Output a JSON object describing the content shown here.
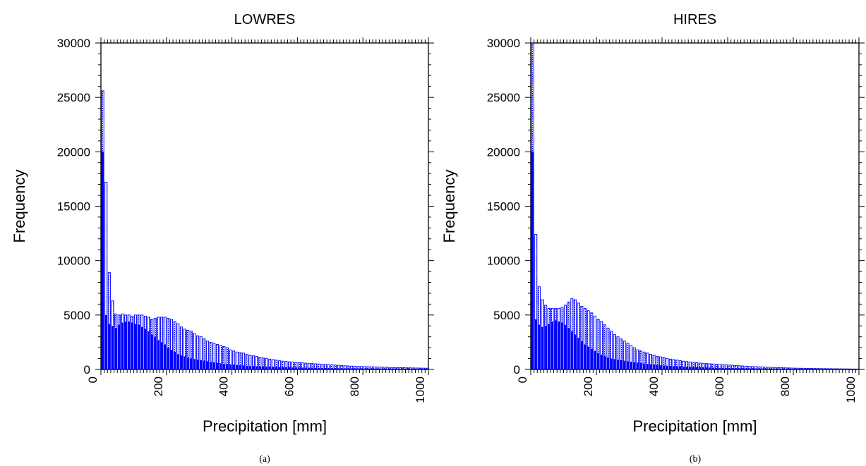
{
  "chart_data": [
    {
      "type": "bar",
      "title": "LOWRES",
      "xlabel": "Precipitation [mm]",
      "ylabel": "Frequency",
      "caption": "(a)",
      "xlim": [
        0,
        1000
      ],
      "ylim": [
        0,
        30000
      ],
      "xticks": [
        0,
        200,
        400,
        600,
        800,
        1000
      ],
      "yticks": [
        0,
        5000,
        10000,
        15000,
        20000,
        25000,
        30000
      ],
      "bin_width": 10,
      "bar_color": "#0000ff",
      "bar_style": "overlaid filled + hatched outline bars",
      "grid": false,
      "series": [
        {
          "style": "outline",
          "values": [
            25600,
            17200,
            8900,
            6300,
            5100,
            5000,
            5100,
            5000,
            5000,
            4900,
            5000,
            5000,
            5000,
            4900,
            4800,
            4600,
            4700,
            4800,
            4800,
            4800,
            4700,
            4600,
            4400,
            4200,
            3900,
            3700,
            3600,
            3500,
            3300,
            3100,
            3000,
            2800,
            2600,
            2500,
            2400,
            2300,
            2200,
            2100,
            2000,
            1800,
            1700,
            1600,
            1550,
            1500,
            1400,
            1300,
            1250,
            1200,
            1100,
            1050,
            1000,
            950,
            900,
            850,
            800,
            760,
            730,
            700,
            680,
            650,
            620,
            600,
            580,
            560,
            540,
            520,
            500,
            480,
            460,
            440,
            420,
            400,
            380,
            360,
            340,
            320,
            305,
            290,
            280,
            270,
            260,
            250,
            240,
            230,
            220,
            210,
            200,
            190,
            180,
            175,
            170,
            165,
            160,
            150,
            145,
            140,
            130,
            125,
            120,
            115
          ]
        },
        {
          "style": "filled",
          "values": [
            20000,
            5000,
            4200,
            4000,
            3800,
            4100,
            4300,
            4400,
            4400,
            4300,
            4200,
            4100,
            3900,
            3700,
            3500,
            3200,
            3000,
            2700,
            2500,
            2300,
            2000,
            1800,
            1600,
            1400,
            1300,
            1200,
            1100,
            1000,
            950,
            900,
            850,
            800,
            750,
            700,
            650,
            600,
            560,
            520,
            480,
            450,
            420,
            400,
            380,
            360,
            340,
            320,
            300,
            290,
            280,
            270,
            260,
            250,
            240,
            230,
            220,
            210,
            200,
            190,
            180,
            175,
            170,
            165,
            160,
            155,
            150,
            145,
            140,
            135,
            130,
            125,
            120,
            115,
            110,
            105,
            100,
            98,
            95,
            92,
            90,
            88,
            85,
            82,
            80,
            78,
            76,
            74,
            72,
            70,
            68,
            66,
            64,
            62,
            60,
            58,
            56,
            54,
            52,
            50,
            48,
            46
          ]
        }
      ]
    },
    {
      "type": "bar",
      "title": "HIRES",
      "xlabel": "Precipitation [mm]",
      "ylabel": "Frequency",
      "caption": "(b)",
      "xlim": [
        0,
        1000
      ],
      "ylim": [
        0,
        30000
      ],
      "xticks": [
        0,
        200,
        400,
        600,
        800,
        1000
      ],
      "yticks": [
        0,
        5000,
        10000,
        15000,
        20000,
        25000,
        30000
      ],
      "bin_width": 10,
      "bar_color": "#0000ff",
      "bar_style": "overlaid filled + hatched outline bars",
      "grid": false,
      "series": [
        {
          "style": "outline",
          "values": [
            30000,
            12400,
            7600,
            6400,
            5900,
            5600,
            5600,
            5600,
            5600,
            5700,
            5900,
            6200,
            6500,
            6400,
            6100,
            5800,
            5600,
            5400,
            5200,
            4900,
            4600,
            4400,
            4100,
            3800,
            3500,
            3200,
            3000,
            2800,
            2600,
            2400,
            2200,
            2000,
            1800,
            1700,
            1600,
            1500,
            1400,
            1300,
            1200,
            1150,
            1100,
            1000,
            950,
            900,
            850,
            800,
            760,
            720,
            680,
            650,
            620,
            590,
            560,
            540,
            520,
            500,
            480,
            460,
            440,
            420,
            400,
            380,
            360,
            340,
            320,
            300,
            285,
            270,
            255,
            240,
            225,
            210,
            200,
            190,
            180,
            170,
            160,
            150,
            140,
            130,
            120,
            115,
            110,
            105,
            100,
            95,
            90,
            85,
            80,
            76,
            72,
            68,
            64,
            60,
            56,
            52,
            48,
            44,
            40,
            36
          ]
        },
        {
          "style": "filled",
          "values": [
            20000,
            4600,
            4100,
            3900,
            4000,
            4200,
            4400,
            4500,
            4400,
            4300,
            4100,
            3800,
            3500,
            3200,
            2900,
            2600,
            2300,
            2100,
            1900,
            1700,
            1500,
            1350,
            1200,
            1100,
            1000,
            950,
            900,
            850,
            800,
            750,
            700,
            660,
            620,
            580,
            540,
            500,
            470,
            440,
            410,
            380,
            360,
            340,
            320,
            300,
            285,
            270,
            255,
            240,
            230,
            220,
            210,
            200,
            190,
            180,
            170,
            160,
            150,
            145,
            140,
            135,
            130,
            125,
            120,
            115,
            110,
            105,
            100,
            96,
            92,
            88,
            84,
            80,
            76,
            72,
            68,
            64,
            60,
            57,
            54,
            51,
            48,
            45,
            42,
            40,
            38,
            36,
            34,
            32,
            30,
            28,
            26,
            24,
            22,
            20,
            18,
            16,
            14,
            12,
            10,
            8
          ]
        }
      ]
    }
  ]
}
